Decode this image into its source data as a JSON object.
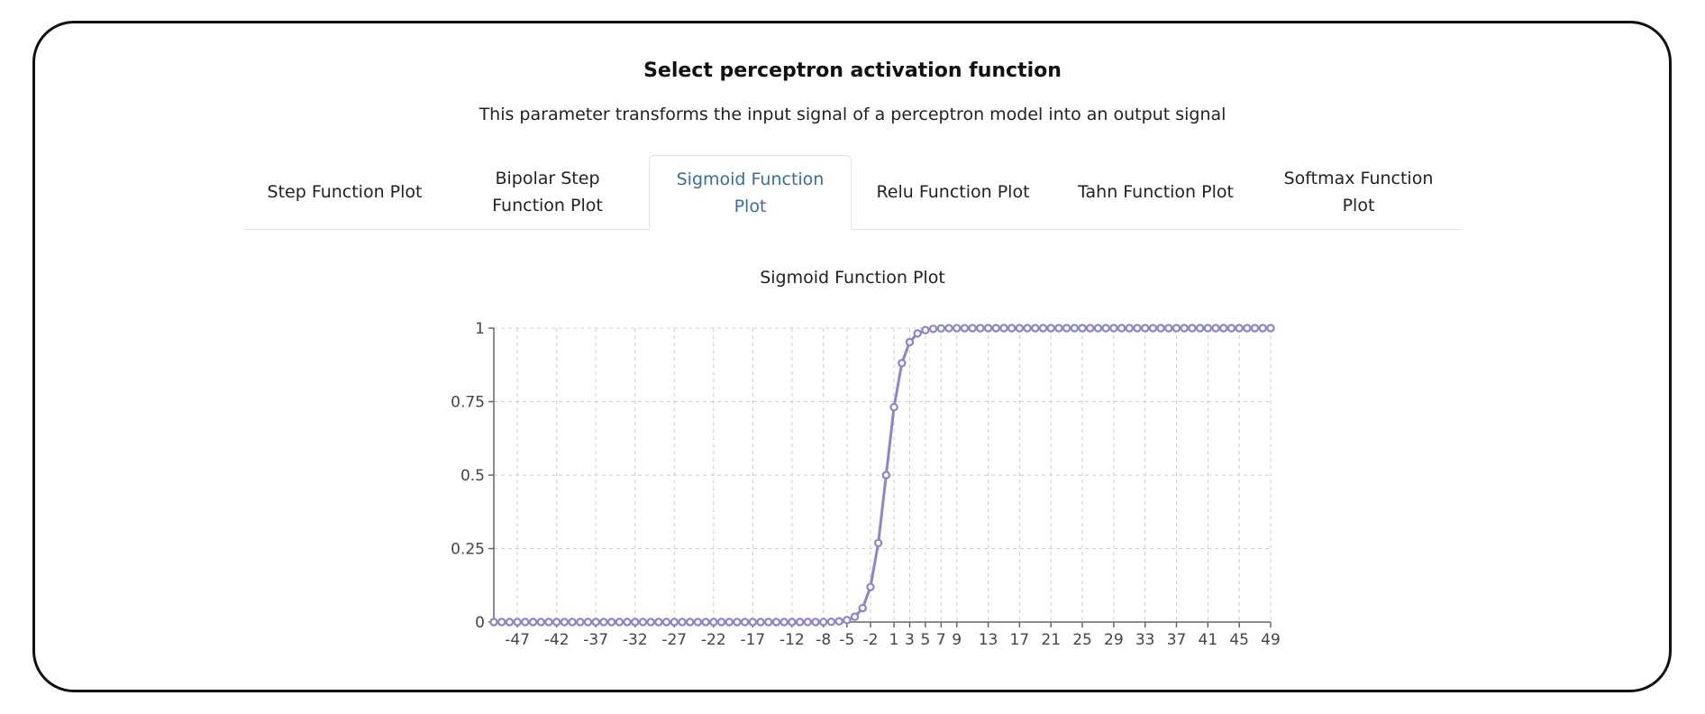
{
  "header": {
    "title": "Select perceptron activation function",
    "subtitle": "This parameter transforms the input signal of a perceptron model into an output signal"
  },
  "tabs": [
    {
      "label": "Step Function Plot",
      "active": false
    },
    {
      "label": "Bipolar Step Function Plot",
      "active": false
    },
    {
      "label": "Sigmoid Function Plot",
      "active": true
    },
    {
      "label": "Relu Function Plot",
      "active": false
    },
    {
      "label": "Tahn Function Plot",
      "active": false
    },
    {
      "label": "Softmax Function Plot",
      "active": false
    }
  ],
  "colors": {
    "series": "#8884d8",
    "active_tab_text": "#3a6aa8",
    "grid": "#cccccc"
  },
  "chart_data": {
    "type": "line",
    "title": "Sigmoid Function Plot",
    "xlabel": "",
    "ylabel": "",
    "x_range": [
      -50,
      49
    ],
    "x_step": 1,
    "function": "sigmoid",
    "series": [
      {
        "values_rule": "1 / (1 + exp(-x)) for x = -50 .. 49"
      }
    ],
    "x_tick_labels": [
      "-47",
      "-42",
      "-37",
      "-32",
      "-27",
      "-22",
      "-17",
      "-12",
      "-8",
      "-5",
      "-2",
      "1",
      "3",
      "5",
      "7",
      "9",
      "13",
      "17",
      "21",
      "25",
      "29",
      "33",
      "37",
      "41",
      "45",
      "49"
    ],
    "x_tick_values": [
      -47,
      -42,
      -37,
      -32,
      -27,
      -22,
      -17,
      -12,
      -8,
      -5,
      -2,
      1,
      3,
      5,
      7,
      9,
      13,
      17,
      21,
      25,
      29,
      33,
      37,
      41,
      45,
      49
    ],
    "y_ticks": [
      0,
      0.25,
      0.5,
      0.75,
      1
    ],
    "y_tick_labels": [
      "0",
      "0.25",
      "0.5",
      "0.75",
      "1"
    ],
    "ylim": [
      0,
      1
    ],
    "grid": true,
    "legend": "none"
  }
}
